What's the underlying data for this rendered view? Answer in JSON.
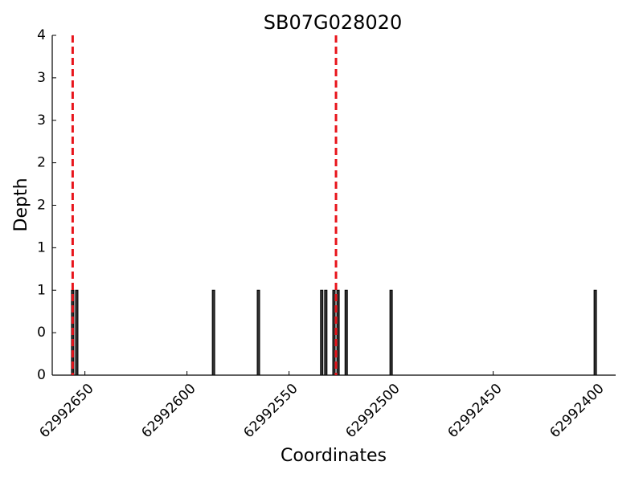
{
  "chart_data": {
    "type": "bar",
    "title": "SB07G028020",
    "x_label": "Coordinates",
    "y_label": "Depth",
    "x": [
      62992656,
      62992654,
      62992587,
      62992565,
      62992534,
      62992532,
      62992528,
      62992526,
      62992522,
      62992500,
      62992400
    ],
    "values": [
      1,
      1,
      1,
      1,
      1,
      1,
      1,
      1,
      1,
      1,
      1
    ],
    "color": "#333333",
    "xlim": [
      62992666,
      62992390
    ],
    "xticks": [
      62992650,
      62992600,
      62992550,
      62992500,
      62992450,
      62992400
    ],
    "ylim": [
      0,
      4
    ],
    "yticks": [
      0,
      {
        "value": 0.5,
        "label": "0"
      },
      1,
      {
        "value": 1.5,
        "label": "1"
      },
      2,
      {
        "value": 2.5,
        "label": "2"
      },
      3,
      {
        "value": 3.5,
        "label": "3"
      },
      4
    ],
    "markers": [
      {
        "x": 62992656,
        "color": "#e8141b"
      },
      {
        "x": 62992527,
        "color": "#e8141b"
      }
    ]
  }
}
